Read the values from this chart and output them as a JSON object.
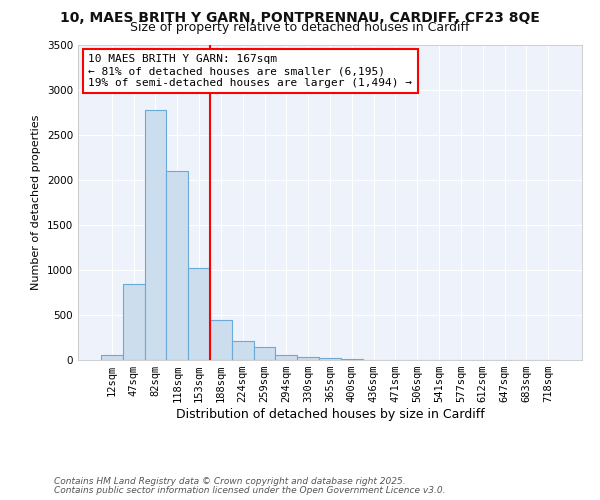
{
  "title": "10, MAES BRITH Y GARN, PONTPRENNAU, CARDIFF, CF23 8QE",
  "subtitle": "Size of property relative to detached houses in Cardiff",
  "xlabel": "Distribution of detached houses by size in Cardiff",
  "ylabel": "Number of detached properties",
  "bin_labels": [
    "12sqm",
    "47sqm",
    "82sqm",
    "118sqm",
    "153sqm",
    "188sqm",
    "224sqm",
    "259sqm",
    "294sqm",
    "330sqm",
    "365sqm",
    "400sqm",
    "436sqm",
    "471sqm",
    "506sqm",
    "541sqm",
    "577sqm",
    "612sqm",
    "647sqm",
    "683sqm",
    "718sqm"
  ],
  "bar_values": [
    55,
    850,
    2775,
    2100,
    1025,
    450,
    210,
    140,
    60,
    30,
    20,
    10,
    5,
    3,
    2,
    1,
    1,
    0,
    0,
    0,
    0
  ],
  "bar_color": "#ccdded",
  "bar_edge_color": "#6aaad4",
  "vline_color": "red",
  "vline_pos": 4.5,
  "ylim": [
    0,
    3500
  ],
  "yticks": [
    0,
    500,
    1000,
    1500,
    2000,
    2500,
    3000,
    3500
  ],
  "annotation_line1": "10 MAES BRITH Y GARN: 167sqm",
  "annotation_line2": "← 81% of detached houses are smaller (6,195)",
  "annotation_line3": "19% of semi-detached houses are larger (1,494) →",
  "footer_line1": "Contains HM Land Registry data © Crown copyright and database right 2025.",
  "footer_line2": "Contains public sector information licensed under the Open Government Licence v3.0.",
  "bg_color": "#ffffff",
  "plot_bg_color": "#eef2fa",
  "grid_color": "#ffffff",
  "title_fontsize": 10,
  "subtitle_fontsize": 9,
  "xlabel_fontsize": 9,
  "ylabel_fontsize": 8,
  "tick_fontsize": 7.5,
  "footer_fontsize": 6.5,
  "annot_fontsize": 8
}
